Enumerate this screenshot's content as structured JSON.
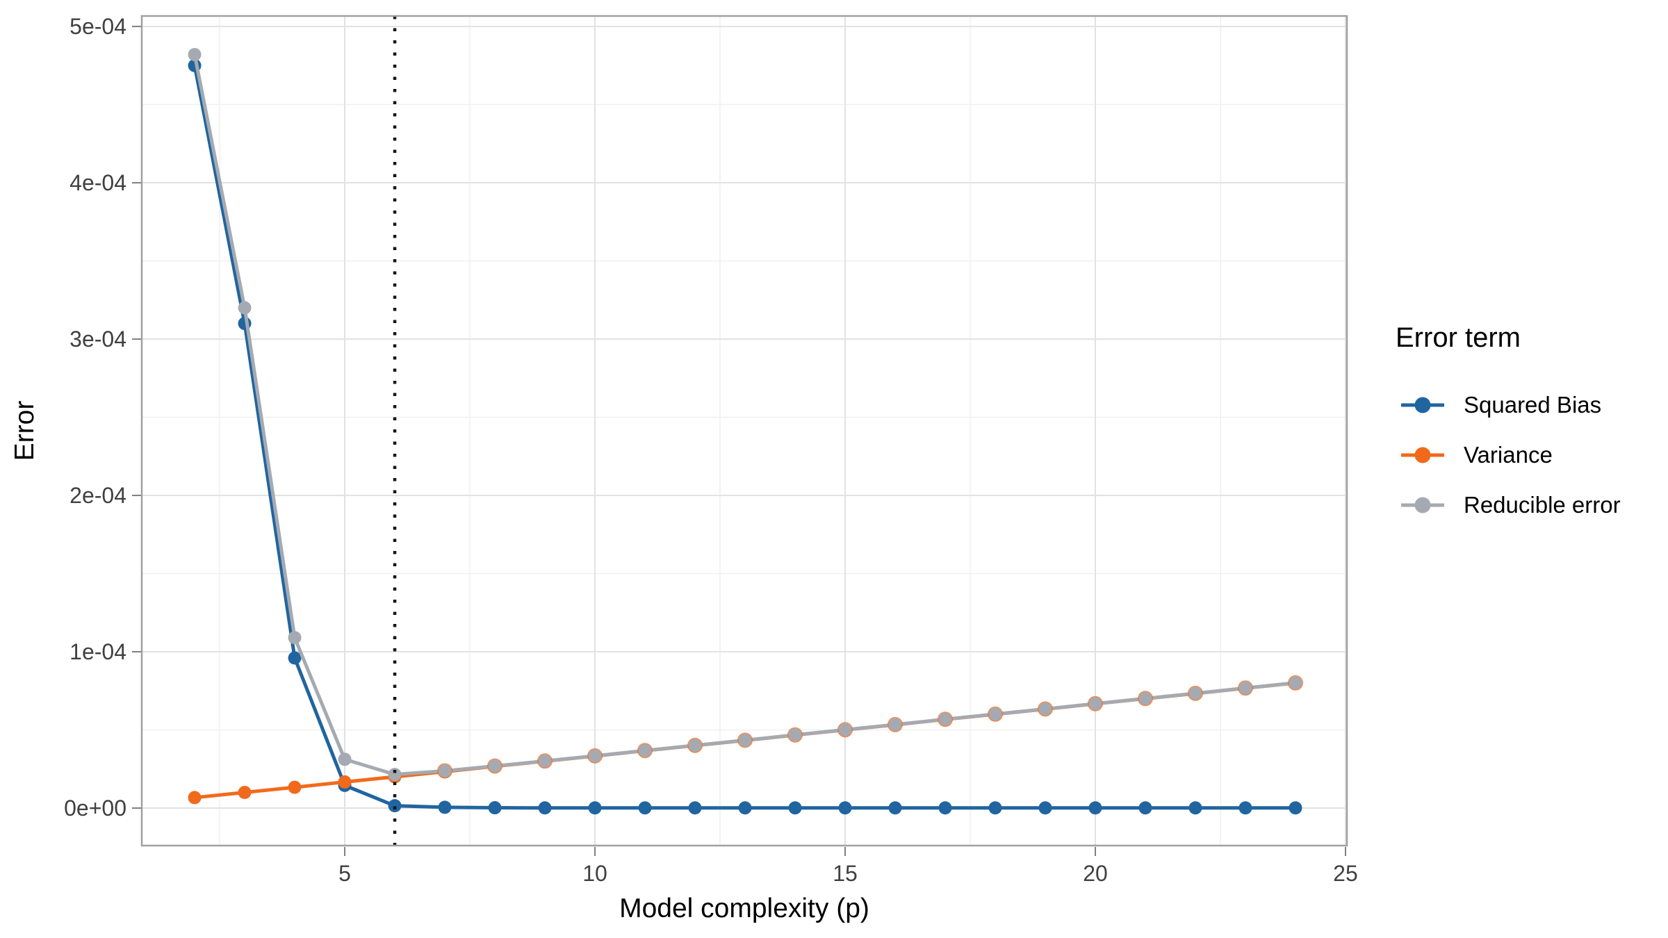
{
  "chart_data": {
    "type": "line",
    "title": "",
    "xlabel": "Model complexity (p)",
    "ylabel": "Error",
    "legend_title": "Error term",
    "legend_position": "right",
    "grid": true,
    "x": [
      2,
      3,
      4,
      5,
      6,
      7,
      8,
      9,
      10,
      11,
      12,
      13,
      14,
      15,
      16,
      17,
      18,
      19,
      20,
      21,
      22,
      23,
      24
    ],
    "series": [
      {
        "name": "Squared Bias",
        "color": "#2065A0",
        "values": [
          0.000475,
          0.00031,
          9.6e-05,
          1.45e-05,
          1.5e-06,
          5e-07,
          2e-07,
          1e-07,
          1e-07,
          1e-07,
          1e-07,
          1e-07,
          1e-07,
          1e-07,
          1e-07,
          1e-07,
          1e-07,
          1e-07,
          1e-07,
          1e-07,
          1e-07,
          1e-07,
          1e-07
        ]
      },
      {
        "name": "Variance",
        "color": "#F16A1B",
        "values": [
          6.7e-06,
          1e-05,
          1.33e-05,
          1.67e-05,
          2e-05,
          2.33e-05,
          2.67e-05,
          3e-05,
          3.33e-05,
          3.67e-05,
          4e-05,
          4.33e-05,
          4.67e-05,
          5e-05,
          5.33e-05,
          5.67e-05,
          6e-05,
          6.33e-05,
          6.67e-05,
          7e-05,
          7.33e-05,
          7.67e-05,
          8e-05
        ]
      },
      {
        "name": "Reducible error",
        "color": "#A5AAB2",
        "values": [
          0.000482,
          0.00032,
          0.000109,
          3.12e-05,
          2.15e-05,
          2.38e-05,
          2.69e-05,
          3.01e-05,
          3.34e-05,
          3.68e-05,
          4.01e-05,
          4.34e-05,
          4.68e-05,
          5.01e-05,
          5.34e-05,
          5.68e-05,
          6.01e-05,
          6.34e-05,
          6.68e-05,
          7.01e-05,
          7.34e-05,
          7.68e-05,
          8.01e-05
        ]
      }
    ],
    "vline_x": 6,
    "vline_style": "dotted",
    "vline_color": "#151515",
    "xlim": [
      0.944,
      25.028
    ],
    "ylim": [
      -2.4e-05,
      0.0005067
    ],
    "x_ticks": [
      5,
      10,
      15,
      20,
      25
    ],
    "x_tick_labels": [
      "5",
      "10",
      "15",
      "20",
      "25"
    ],
    "x_minor_ticks": [
      2.5,
      7.5,
      12.5,
      17.5,
      22.5
    ],
    "y_ticks": [
      0,
      0.0001,
      0.0002,
      0.0003,
      0.0004,
      0.0005
    ],
    "y_tick_labels": [
      "0e+00",
      "1e-04",
      "2e-04",
      "3e-04",
      "4e-04",
      "5e-04"
    ],
    "y_minor_ticks": [
      5e-05,
      0.00015,
      0.00025,
      0.00035,
      0.00045
    ],
    "colors": {
      "grid_major": "#E2E2E2",
      "grid_minor": "#F0F0F0",
      "panel_border": "#A0A0A0",
      "tick_mark": "#7F7F7F",
      "tick_label": "#404040",
      "background": "#FFFFFF"
    }
  }
}
